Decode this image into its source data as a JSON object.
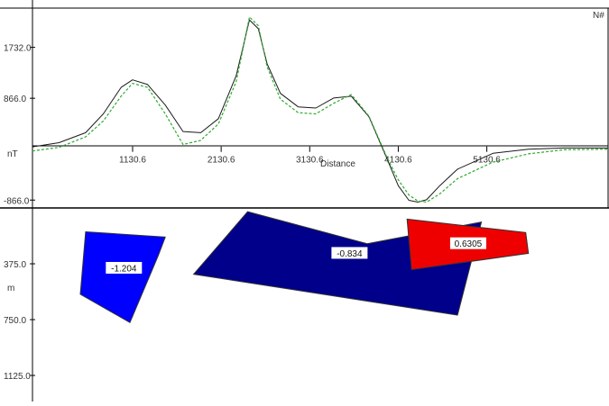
{
  "chart_data": {
    "type": "line",
    "north_marker": "N#",
    "profile": {
      "yunit": "nT",
      "xlabel": "Distance",
      "x_ticks": [
        "1130.6",
        "2130.6",
        "3130.6",
        "4130.6",
        "5130.6"
      ],
      "x_tick_values": [
        1130.6,
        2130.6,
        3130.6,
        4130.6,
        5130.6
      ],
      "y_ticks": [
        "1732.0",
        "866.0",
        "-866.0"
      ],
      "y_tick_values": [
        1732.0,
        866.0,
        -866.0
      ],
      "xlim": [
        0,
        6500
      ],
      "ylim": [
        -1000,
        2400
      ],
      "series": [
        {
          "color": "#1a1a1a",
          "style": "solid",
          "x": [
            0,
            300,
            600,
            800,
            1000,
            1130,
            1300,
            1500,
            1700,
            1900,
            2100,
            2300,
            2450,
            2550,
            2650,
            2800,
            3000,
            3200,
            3400,
            3600,
            3800,
            4000,
            4130,
            4250,
            4350,
            4450,
            4600,
            4800,
            5200,
            5600,
            6000,
            6500
          ],
          "y": [
            40,
            110,
            280,
            600,
            1050,
            1180,
            1100,
            750,
            300,
            280,
            520,
            1250,
            2200,
            2050,
            1450,
            950,
            720,
            700,
            870,
            900,
            550,
            -150,
            -620,
            -870,
            -900,
            -860,
            -620,
            -340,
            -70,
            0,
            20,
            20
          ]
        },
        {
          "color": "#2eaa2e",
          "style": "dashed",
          "x": [
            0,
            300,
            600,
            800,
            1000,
            1130,
            1300,
            1500,
            1700,
            1900,
            2100,
            2300,
            2450,
            2550,
            2650,
            2800,
            3000,
            3200,
            3400,
            3600,
            3800,
            4000,
            4130,
            4250,
            4350,
            4450,
            4600,
            4800,
            5200,
            5600,
            6000,
            6500
          ],
          "y": [
            -30,
            30,
            210,
            480,
            900,
            1120,
            1050,
            600,
            80,
            150,
            430,
            1150,
            2250,
            2100,
            1400,
            850,
            620,
            600,
            780,
            930,
            560,
            -130,
            -520,
            -780,
            -880,
            -900,
            -760,
            -500,
            -220,
            -80,
            -10,
            0
          ]
        }
      ]
    },
    "section": {
      "yunit": "m",
      "y_ticks": [
        "375.0",
        "750.0",
        "1125.0"
      ],
      "y_tick_values": [
        375,
        750,
        1125
      ],
      "ylim": [
        0,
        1300
      ],
      "bodies": [
        {
          "label": "-1.204",
          "color": "#0000ff",
          "x": [
            600,
            1500,
            1420,
            1100,
            540
          ],
          "depth": [
            160,
            195,
            320,
            770,
            580
          ]
        },
        {
          "label": "-0.834",
          "color": "#00008b",
          "x": [
            2430,
            3780,
            5070,
            4800,
            1820
          ],
          "depth": [
            25,
            240,
            95,
            720,
            445
          ]
        },
        {
          "label": "0.6305",
          "color": "#ee0000",
          "x": [
            4230,
            5570,
            5600,
            4280
          ],
          "depth": [
            75,
            165,
            305,
            415
          ]
        }
      ]
    }
  }
}
